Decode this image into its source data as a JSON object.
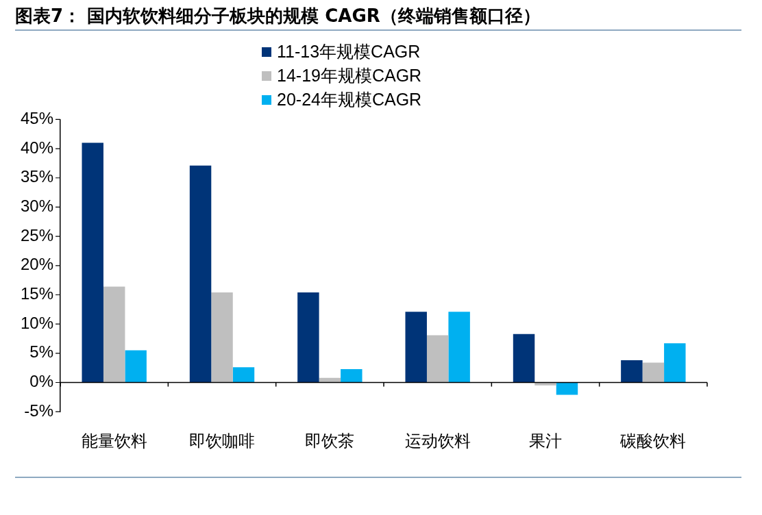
{
  "chart_data": {
    "type": "bar",
    "title": "图表7： 国内软饮料细分子板块的规模 CAGR（终端销售额口径）",
    "categories": [
      "能量饮料",
      "即饮咖啡",
      "即饮茶",
      "运动饮料",
      "果汁",
      "碳酸饮料"
    ],
    "series": [
      {
        "name": "11-13年规模CAGR",
        "color": "#003478",
        "values": [
          41.0,
          37.1,
          15.4,
          12.1,
          8.3,
          3.8
        ]
      },
      {
        "name": "14-19年规模CAGR",
        "color": "#bfbfbf",
        "values": [
          16.4,
          15.4,
          0.8,
          8.1,
          -0.5,
          3.4
        ]
      },
      {
        "name": "20-24年规模CAGR",
        "color": "#00b0f0",
        "values": [
          5.5,
          2.6,
          2.3,
          12.1,
          -2.1,
          6.7
        ]
      }
    ],
    "ylim": [
      -5,
      45
    ],
    "yticks": [
      {
        "value": -5,
        "label": "-5%"
      },
      {
        "value": 0,
        "label": "0%"
      },
      {
        "value": 5,
        "label": "5%"
      },
      {
        "value": 10,
        "label": "10%"
      },
      {
        "value": 15,
        "label": "15%"
      },
      {
        "value": 20,
        "label": "20%"
      },
      {
        "value": 25,
        "label": "25%"
      },
      {
        "value": 30,
        "label": "30%"
      },
      {
        "value": 35,
        "label": "35%"
      },
      {
        "value": 40,
        "label": "40%"
      },
      {
        "value": 45,
        "label": "45%"
      }
    ],
    "legend": "top"
  }
}
